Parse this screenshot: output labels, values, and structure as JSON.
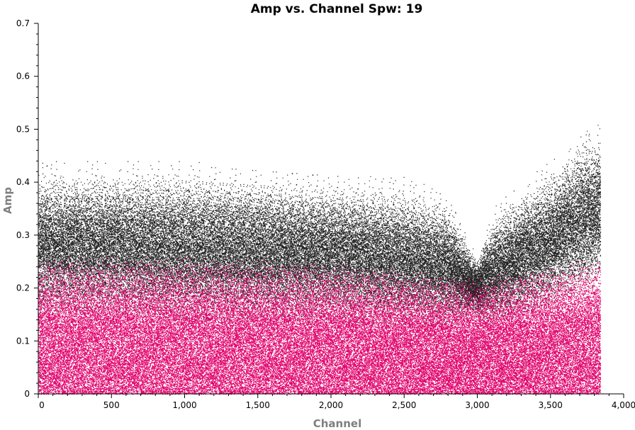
{
  "chart_data": {
    "type": "scatter",
    "title": "Amp vs. Channel Spw: 19",
    "xlabel": "Channel",
    "ylabel": "Amp",
    "xlim": [
      0,
      4000
    ],
    "ylim": [
      0,
      0.7
    ],
    "x_ticks": [
      0,
      500,
      1000,
      1500,
      2000,
      2500,
      3000,
      3500,
      4000
    ],
    "x_tick_labels": [
      "0",
      "500",
      "1,000",
      "1,500",
      "2,000",
      "2,500",
      "3,000",
      "3,500",
      "4,000"
    ],
    "y_ticks": [
      0,
      0.1,
      0.2,
      0.3,
      0.4,
      0.5,
      0.6,
      0.7
    ],
    "y_tick_labels": [
      "0",
      "0.1",
      "0.2",
      "0.3",
      "0.4",
      "0.5",
      "0.6",
      "0.7"
    ],
    "grid": false,
    "legend": "none",
    "channel_range": [
      0,
      3839
    ],
    "series": [
      {
        "color": "#222222",
        "x": [
          0,
          500,
          1000,
          1500,
          2000,
          2500,
          2800,
          2950,
          3000,
          3100,
          3300,
          3500,
          3700,
          3839
        ],
        "y_center": [
          0.28,
          0.28,
          0.275,
          0.27,
          0.265,
          0.255,
          0.24,
          0.21,
          0.2,
          0.23,
          0.26,
          0.29,
          0.33,
          0.35
        ],
        "y_max": [
          0.44,
          0.44,
          0.44,
          0.43,
          0.42,
          0.41,
          0.38,
          0.28,
          0.27,
          0.35,
          0.4,
          0.44,
          0.5,
          0.51
        ],
        "y_min": [
          0.13,
          0.13,
          0.13,
          0.13,
          0.13,
          0.13,
          0.12,
          0.1,
          0.1,
          0.12,
          0.13,
          0.14,
          0.15,
          0.15
        ]
      },
      {
        "color": "#e0006b",
        "x": [
          0,
          1000,
          2000,
          3000,
          3839
        ],
        "y_center": [
          0.1,
          0.1,
          0.1,
          0.095,
          0.1
        ],
        "y_max": [
          0.26,
          0.26,
          0.25,
          0.22,
          0.26
        ],
        "y_min": [
          0.0,
          0.0,
          0.0,
          0.0,
          0.0
        ]
      }
    ]
  },
  "colors": {
    "axis": "#000000",
    "label": "#7f7f7f"
  }
}
